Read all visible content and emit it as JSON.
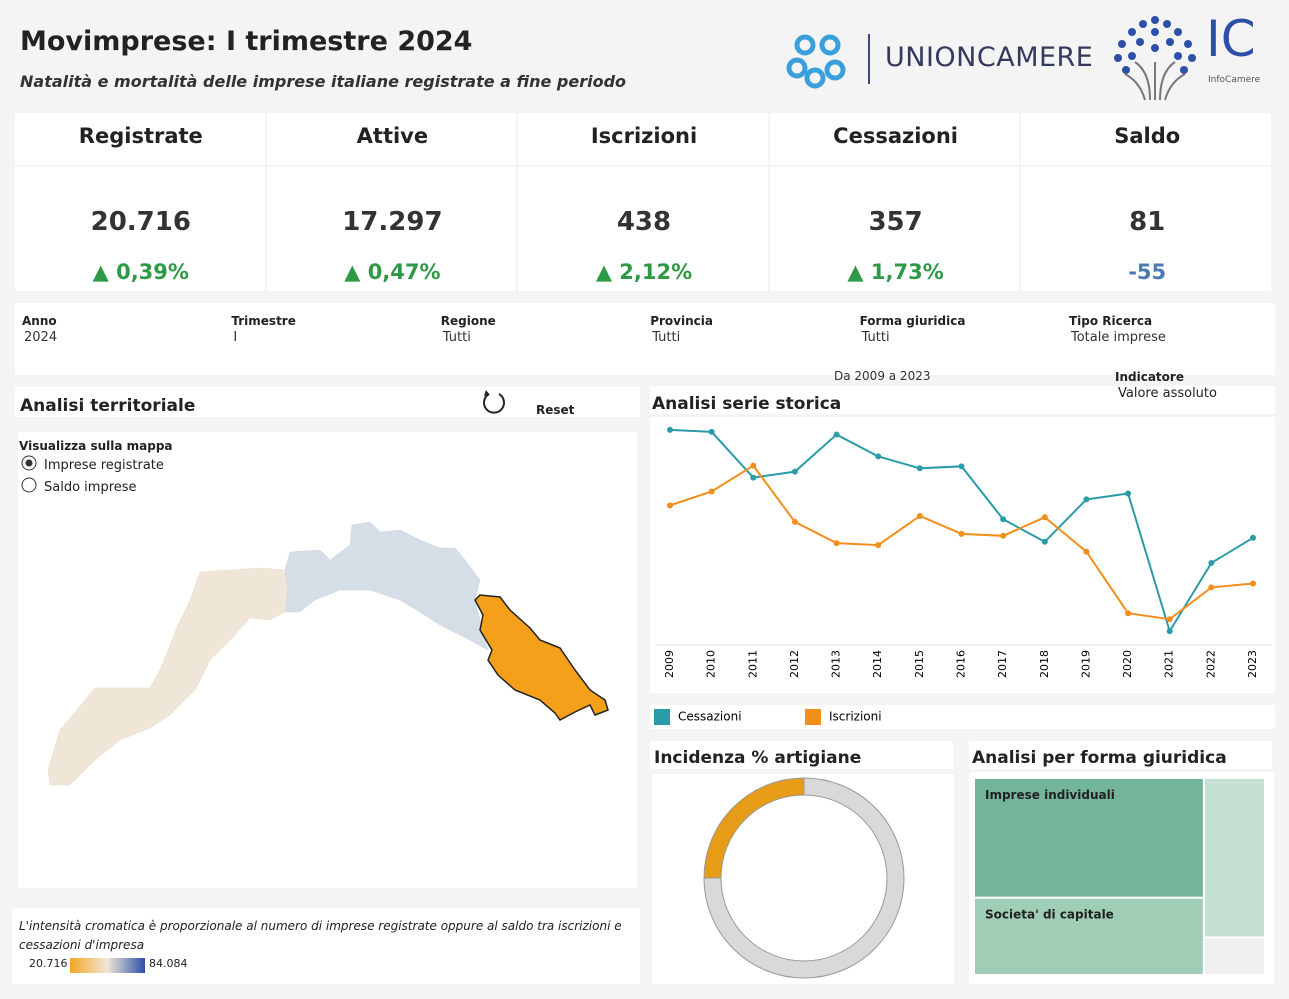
{
  "header": {
    "title": "Movimprese: I trimestre 2024",
    "subtitle": "Natalità e mortalità delle imprese italiane registrate a fine periodo",
    "logo1": "UNIONCAMERE",
    "logo2": "IC",
    "logo2_sub": "InfoCamere"
  },
  "kpis": [
    {
      "label": "Registrate",
      "value": "20.716",
      "change": "0,39%"
    },
    {
      "label": "Attive",
      "value": "17.297",
      "change": "0,47%"
    },
    {
      "label": "Iscrizioni",
      "value": "438",
      "change": "2,12%"
    },
    {
      "label": "Cessazioni",
      "value": "357",
      "change": "1,73%"
    },
    {
      "label": "Saldo",
      "value": "81",
      "change": "-55"
    }
  ],
  "filters": [
    {
      "label": "Anno",
      "value": "2024"
    },
    {
      "label": "Trimestre",
      "value": "I"
    },
    {
      "label": "Regione",
      "value": "Tutti"
    },
    {
      "label": "Provincia",
      "value": "Tutti"
    },
    {
      "label": "Forma giuridica",
      "value": "Tutti"
    },
    {
      "label": "Tipo Ricerca",
      "value": "Totale imprese"
    }
  ],
  "period": "Da 2009 a 2023",
  "indicator": {
    "label": "Indicatore",
    "value": "Valore assoluto"
  },
  "map": {
    "title": "Analisi territoriale",
    "reset": "Reset",
    "options_title": "Visualizza sulla mappa",
    "options": [
      "Imprese registrate",
      "Saldo imprese"
    ],
    "note": "L'intensità cromatica è proporzionale al numero di imprese registrate oppure al saldo tra iscrizioni e cessazioni d'impresa",
    "legend_min": "20.716",
    "legend_max": "84.084"
  },
  "chart_data": [
    {
      "type": "line",
      "title": "Analisi serie storica",
      "x": [
        2009,
        2010,
        2011,
        2012,
        2013,
        2014,
        2015,
        2016,
        2017,
        2018,
        2019,
        2020,
        2021,
        2022,
        2023
      ],
      "xlim": [
        2009,
        2023
      ],
      "ylim": [
        310,
        650
      ],
      "series": [
        {
          "name": "Cessazioni",
          "color": "#2a9ca8",
          "values": [
            635,
            632,
            563,
            572,
            628,
            595,
            577,
            580,
            500,
            466,
            530,
            539,
            331,
            434,
            472
          ]
        },
        {
          "name": "Iscrizioni",
          "color": "#f28e1c",
          "values": [
            521,
            542,
            581,
            496,
            464,
            461,
            505,
            478,
            475,
            503,
            451,
            358,
            349,
            397,
            403
          ]
        }
      ]
    },
    {
      "type": "pie",
      "title": "Incidenza % artigiane",
      "categories": [
        null,
        null
      ],
      "values": [
        25,
        75
      ],
      "colors": [
        "#e69c17",
        "#d9d9d9"
      ]
    },
    {
      "type": "treemap",
      "title": "Analisi per forma giuridica",
      "categories": [
        "Imprese individuali",
        "Societa' di capitale",
        null,
        null
      ],
      "values": [
        48,
        31,
        17,
        4
      ],
      "colors": [
        "#74b49b",
        "#a0cdb6",
        "#c4e0d3",
        "#efefef"
      ]
    }
  ]
}
